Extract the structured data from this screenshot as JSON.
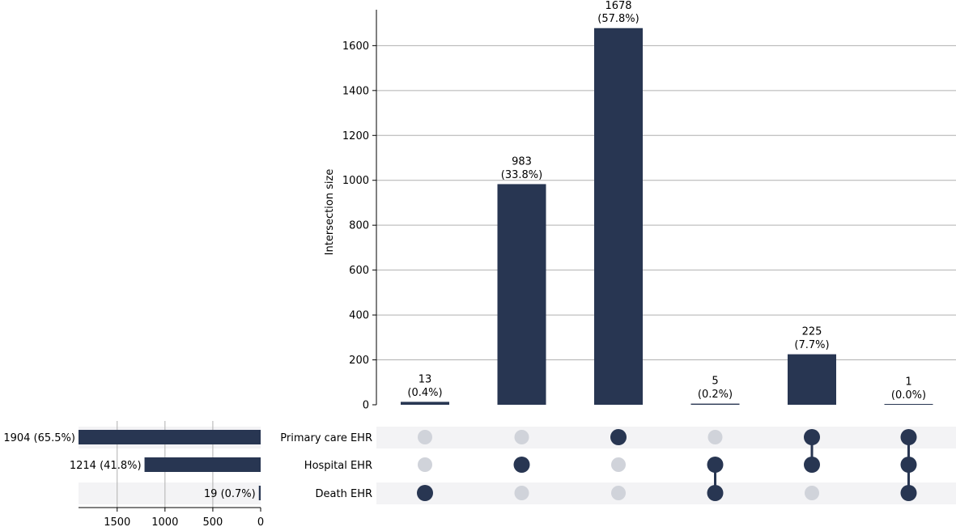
{
  "chart_data": {
    "type": "bar",
    "kind": "upset",
    "ylabel": "Intersection size",
    "ylim": [
      0,
      1760
    ],
    "yticks": [
      0,
      200,
      400,
      600,
      800,
      1000,
      1200,
      1400,
      1600
    ],
    "sets": [
      {
        "name": "Primary care EHR",
        "size": 1904,
        "label": "1904 (65.5%)"
      },
      {
        "name": "Hospital EHR",
        "size": 1214,
        "label": "1214 (41.8%)"
      },
      {
        "name": "Death EHR",
        "size": 19,
        "label": "19 (0.7%)"
      }
    ],
    "set_size_ticks": [
      1500,
      1000,
      500,
      0
    ],
    "set_size_xlim": [
      1904,
      0
    ],
    "intersections": [
      {
        "members": [
          false,
          false,
          true
        ],
        "value": 13,
        "count_label": "13",
        "pct_label": "(0.4%)"
      },
      {
        "members": [
          false,
          true,
          false
        ],
        "value": 983,
        "count_label": "983",
        "pct_label": "(33.8%)"
      },
      {
        "members": [
          true,
          false,
          false
        ],
        "value": 1678,
        "count_label": "1678",
        "pct_label": "(57.8%)"
      },
      {
        "members": [
          false,
          true,
          true
        ],
        "value": 5,
        "count_label": "5",
        "pct_label": "(0.2%)"
      },
      {
        "members": [
          true,
          true,
          false
        ],
        "value": 225,
        "count_label": "225",
        "pct_label": "(7.7%)"
      },
      {
        "members": [
          true,
          true,
          true
        ],
        "value": 1,
        "count_label": "1",
        "pct_label": "(0.0%)"
      }
    ],
    "grid": true,
    "colors": {
      "bar": "#283652",
      "dot_inactive": "#d0d3da",
      "row_shade": "#f3f3f5",
      "grid": "#b0b0b0"
    }
  }
}
